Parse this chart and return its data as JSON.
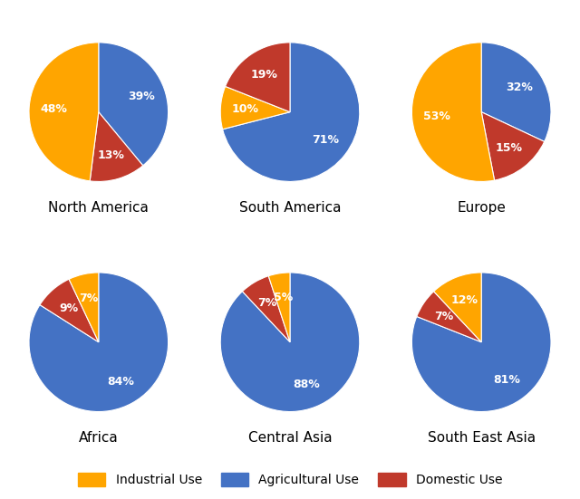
{
  "regions": [
    "North America",
    "South America",
    "Europe",
    "Africa",
    "Central Asia",
    "South East Asia"
  ],
  "data": {
    "North America": {
      "Agricultural": 39,
      "Domestic": 13,
      "Industrial": 48
    },
    "South America": {
      "Agricultural": 71,
      "Industrial": 10,
      "Domestic": 19
    },
    "Europe": {
      "Agricultural": 32,
      "Domestic": 15,
      "Industrial": 53
    },
    "Africa": {
      "Agricultural": 84,
      "Domestic": 9,
      "Industrial": 7
    },
    "Central Asia": {
      "Agricultural": 88,
      "Domestic": 7,
      "Industrial": 5
    },
    "South East Asia": {
      "Agricultural": 81,
      "Domestic": 7,
      "Industrial": 12
    }
  },
  "order": {
    "North America": [
      "Agricultural",
      "Domestic",
      "Industrial"
    ],
    "South America": [
      "Agricultural",
      "Industrial",
      "Domestic"
    ],
    "Europe": [
      "Agricultural",
      "Domestic",
      "Industrial"
    ],
    "Africa": [
      "Agricultural",
      "Domestic",
      "Industrial"
    ],
    "Central Asia": [
      "Agricultural",
      "Domestic",
      "Industrial"
    ],
    "South East Asia": [
      "Agricultural",
      "Domestic",
      "Industrial"
    ]
  },
  "startangles": {
    "North America": 90,
    "South America": 90,
    "Europe": 90,
    "Africa": 90,
    "Central Asia": 90,
    "South East Asia": 90
  },
  "colors": {
    "Industrial": "#FFA500",
    "Agricultural": "#4472C4",
    "Domestic": "#C0392B"
  },
  "label_color": "white",
  "label_fontsize": 9,
  "title_fontsize": 11,
  "legend_fontsize": 10,
  "background_color": "#FFFFFF",
  "figsize": [
    6.4,
    5.51
  ],
  "dpi": 100
}
